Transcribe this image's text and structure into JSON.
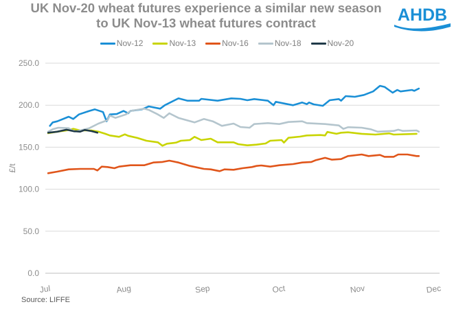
{
  "title_line1": "UK Nov-20 wheat futures experience a similar new season",
  "title_line2": "to UK Nov-13 wheat futures contract",
  "logo_text": "AHDB",
  "source": "Source: LIFFE",
  "colors": {
    "Nov-12": "#1a8fd6",
    "Nov-13": "#c8d400",
    "Nov-16": "#e0551a",
    "Nov-18": "#b4c5cd",
    "Nov-20": "#203a48"
  },
  "chart_data": {
    "type": "line",
    "title": "UK Nov-20 wheat futures experience a similar new season to UK Nov-13 wheat futures contract",
    "xlabel": "",
    "ylabel": "£/t",
    "ylim": [
      0,
      250
    ],
    "xlim_days_from_jul1": [
      0,
      153
    ],
    "yticks": [
      "0.0",
      "50.0",
      "100.0",
      "150.0",
      "200.0",
      "250.0"
    ],
    "xticks": [
      {
        "label": "Jul",
        "day": 0
      },
      {
        "label": "Aug",
        "day": 31
      },
      {
        "label": "Sep",
        "day": 62
      },
      {
        "label": "Oct",
        "day": 92
      },
      {
        "label": "Nov",
        "day": 123
      },
      {
        "label": "Dec",
        "day": 153
      }
    ],
    "grid": "horizontal",
    "legend_position": "top",
    "series": [
      {
        "name": "Nov-12",
        "points": [
          [
            1.8,
            175.4
          ],
          [
            2.9,
            179.5
          ],
          [
            4.7,
            180.8
          ],
          [
            9.2,
            186.3
          ],
          [
            11.0,
            183.6
          ],
          [
            13.2,
            189.0
          ],
          [
            17.3,
            193.1
          ],
          [
            19.5,
            195.0
          ],
          [
            22.7,
            191.8
          ],
          [
            24.1,
            180.8
          ],
          [
            25.4,
            189.0
          ],
          [
            28.1,
            189.5
          ],
          [
            30.8,
            193.1
          ],
          [
            32.6,
            190.4
          ],
          [
            33.5,
            193.1
          ],
          [
            38.0,
            195.0
          ],
          [
            40.7,
            198.5
          ],
          [
            45.2,
            195.8
          ],
          [
            47.0,
            199.9
          ],
          [
            52.4,
            208.1
          ],
          [
            56.0,
            205.3
          ],
          [
            60.5,
            205.3
          ],
          [
            61.4,
            207.5
          ],
          [
            67.8,
            205.3
          ],
          [
            73.2,
            208.1
          ],
          [
            76.8,
            207.5
          ],
          [
            79.5,
            205.9
          ],
          [
            82.2,
            207.3
          ],
          [
            87.6,
            205.3
          ],
          [
            89.8,
            199.9
          ],
          [
            90.7,
            204.0
          ],
          [
            97.5,
            199.9
          ],
          [
            101.1,
            203.2
          ],
          [
            102.9,
            201.2
          ],
          [
            103.8,
            203.2
          ],
          [
            105.6,
            201.0
          ],
          [
            109.2,
            199.3
          ],
          [
            111.9,
            205.9
          ],
          [
            115.5,
            207.3
          ],
          [
            116.4,
            205.3
          ],
          [
            118.2,
            210.8
          ],
          [
            121.8,
            210.0
          ],
          [
            125.4,
            212.2
          ],
          [
            129.0,
            216.3
          ],
          [
            131.7,
            223.0
          ],
          [
            133.5,
            221.7
          ],
          [
            136.7,
            214.9
          ],
          [
            138.5,
            218.1
          ],
          [
            139.8,
            216.3
          ],
          [
            144.3,
            218.1
          ],
          [
            145.2,
            217.1
          ],
          [
            147.0,
            219.8
          ]
        ]
      },
      {
        "name": "Nov-13",
        "points": [
          [
            1.1,
            166.7
          ],
          [
            4.7,
            168.5
          ],
          [
            8.3,
            169.9
          ],
          [
            11.0,
            171.8
          ],
          [
            13.7,
            169.9
          ],
          [
            18.2,
            169.9
          ],
          [
            20.9,
            168.5
          ],
          [
            23.6,
            165.9
          ],
          [
            25.4,
            164.0
          ],
          [
            29.0,
            162.3
          ],
          [
            31.3,
            165.3
          ],
          [
            32.6,
            163.6
          ],
          [
            36.2,
            161.0
          ],
          [
            39.8,
            157.7
          ],
          [
            44.3,
            155.8
          ],
          [
            46.1,
            151.7
          ],
          [
            47.9,
            154.2
          ],
          [
            51.5,
            155.5
          ],
          [
            53.3,
            157.7
          ],
          [
            56.9,
            158.5
          ],
          [
            58.7,
            162.3
          ],
          [
            61.4,
            158.5
          ],
          [
            65.1,
            160.1
          ],
          [
            67.8,
            155.8
          ],
          [
            74.1,
            155.8
          ],
          [
            75.9,
            153.6
          ],
          [
            79.5,
            152.2
          ],
          [
            83.1,
            153.0
          ],
          [
            86.7,
            154.4
          ],
          [
            88.5,
            157.7
          ],
          [
            93.0,
            158.5
          ],
          [
            93.9,
            155.5
          ],
          [
            95.7,
            161.2
          ],
          [
            100.2,
            162.6
          ],
          [
            102.9,
            164.0
          ],
          [
            108.3,
            164.5
          ],
          [
            110.1,
            164.0
          ],
          [
            111.0,
            168.1
          ],
          [
            114.6,
            165.9
          ],
          [
            116.4,
            167.2
          ],
          [
            119.1,
            167.7
          ],
          [
            124.5,
            165.9
          ],
          [
            129.9,
            165.0
          ],
          [
            135.3,
            166.4
          ],
          [
            137.1,
            165.0
          ],
          [
            146.1,
            165.9
          ]
        ]
      },
      {
        "name": "Nov-16",
        "points": [
          [
            1.1,
            119.0
          ],
          [
            4.7,
            120.9
          ],
          [
            9.2,
            123.6
          ],
          [
            13.7,
            124.2
          ],
          [
            19.1,
            124.2
          ],
          [
            20.5,
            122.3
          ],
          [
            22.2,
            126.9
          ],
          [
            24.5,
            126.4
          ],
          [
            27.2,
            125.0
          ],
          [
            29.0,
            126.9
          ],
          [
            33.5,
            128.5
          ],
          [
            38.9,
            128.5
          ],
          [
            42.5,
            131.8
          ],
          [
            46.1,
            132.4
          ],
          [
            48.8,
            134.0
          ],
          [
            52.4,
            131.8
          ],
          [
            56.9,
            127.7
          ],
          [
            62.4,
            124.2
          ],
          [
            65.1,
            123.6
          ],
          [
            68.6,
            121.5
          ],
          [
            70.5,
            123.6
          ],
          [
            74.1,
            123.1
          ],
          [
            77.6,
            125.0
          ],
          [
            81.3,
            126.4
          ],
          [
            83.1,
            127.7
          ],
          [
            84.9,
            128.3
          ],
          [
            88.5,
            126.9
          ],
          [
            92.1,
            128.5
          ],
          [
            97.5,
            129.9
          ],
          [
            101.1,
            131.8
          ],
          [
            104.7,
            132.4
          ],
          [
            106.5,
            134.6
          ],
          [
            110.1,
            137.3
          ],
          [
            112.8,
            135.1
          ],
          [
            116.4,
            135.9
          ],
          [
            119.1,
            139.5
          ],
          [
            124.5,
            141.3
          ],
          [
            127.2,
            139.5
          ],
          [
            131.7,
            140.8
          ],
          [
            133.5,
            138.6
          ],
          [
            137.1,
            138.6
          ],
          [
            138.9,
            141.3
          ],
          [
            142.5,
            141.3
          ],
          [
            146.1,
            139.5
          ],
          [
            147.0,
            139.5
          ]
        ]
      },
      {
        "name": "Nov-18",
        "points": [
          [
            1.1,
            168.5
          ],
          [
            2.9,
            171.3
          ],
          [
            5.1,
            173.2
          ],
          [
            9.2,
            172.6
          ],
          [
            11.4,
            168.5
          ],
          [
            13.7,
            169.9
          ],
          [
            17.3,
            172.6
          ],
          [
            20.9,
            178.1
          ],
          [
            24.5,
            182.2
          ],
          [
            25.4,
            187.7
          ],
          [
            27.6,
            184.9
          ],
          [
            31.7,
            189.0
          ],
          [
            33.5,
            193.1
          ],
          [
            38.9,
            195.8
          ],
          [
            40.7,
            194.4
          ],
          [
            44.3,
            189.0
          ],
          [
            46.6,
            184.9
          ],
          [
            48.8,
            190.4
          ],
          [
            52.4,
            184.9
          ],
          [
            58.7,
            179.5
          ],
          [
            62.4,
            183.6
          ],
          [
            65.9,
            180.8
          ],
          [
            69.5,
            175.4
          ],
          [
            74.1,
            178.1
          ],
          [
            76.8,
            174.0
          ],
          [
            80.4,
            173.2
          ],
          [
            82.2,
            177.5
          ],
          [
            87.6,
            178.7
          ],
          [
            92.1,
            177.5
          ],
          [
            95.7,
            180.0
          ],
          [
            101.1,
            180.8
          ],
          [
            102.9,
            178.7
          ],
          [
            110.1,
            177.5
          ],
          [
            115.5,
            175.9
          ],
          [
            117.3,
            171.8
          ],
          [
            119.1,
            173.8
          ],
          [
            124.5,
            173.2
          ],
          [
            128.1,
            171.3
          ],
          [
            130.8,
            168.5
          ],
          [
            137.1,
            169.4
          ],
          [
            138.9,
            170.8
          ],
          [
            140.7,
            169.4
          ],
          [
            146.1,
            169.9
          ],
          [
            147.0,
            168.5
          ]
        ]
      },
      {
        "name": "Nov-20",
        "points": [
          [
            1.1,
            167.2
          ],
          [
            4.7,
            168.5
          ],
          [
            8.3,
            170.8
          ],
          [
            11.0,
            169.1
          ],
          [
            13.7,
            168.5
          ],
          [
            15.5,
            170.5
          ],
          [
            18.2,
            169.1
          ],
          [
            20.5,
            167.2
          ]
        ]
      }
    ]
  }
}
